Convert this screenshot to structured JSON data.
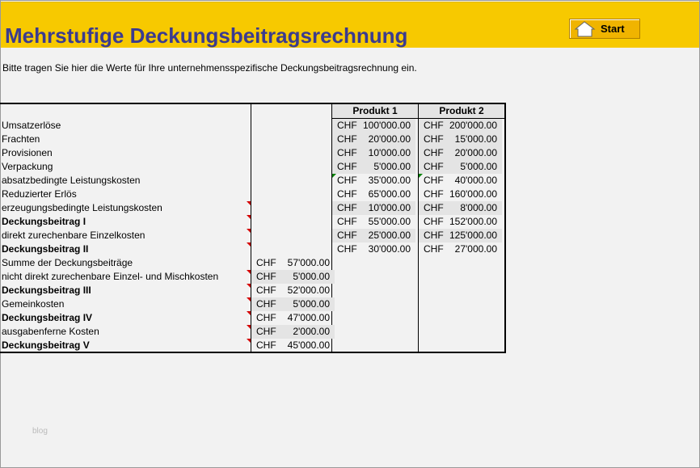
{
  "header": {
    "title": "Mehrstufige Deckungsbeitragsrechnung",
    "start_label": "Start",
    "start_icon": "home-icon",
    "bg": "#f7c900",
    "title_color": "#3b3b8f"
  },
  "intro": "Bitte tragen Sie hier die Werte für Ihre unternehmensspezifische Deckungsbeitragsrechnung ein.",
  "columns": [
    "Produkt 1",
    "Produkt 2"
  ],
  "rows": [
    {
      "label": "Umsatzerlöse",
      "bold": false,
      "p1": "100'000.00",
      "p2": "200'000.00",
      "shade": true
    },
    {
      "label": "Frachten",
      "bold": false,
      "p1": "20'000.00",
      "p2": "15'000.00",
      "shade": true
    },
    {
      "label": "Provisionen",
      "bold": false,
      "p1": "10'000.00",
      "p2": "20'000.00",
      "shade": true
    },
    {
      "label": "Verpackung",
      "bold": false,
      "p1": "5'000.00",
      "p2": "5'000.00",
      "shade": true
    },
    {
      "label": "absatzbedingte Leistungskosten",
      "bold": false,
      "p1": "35'000.00",
      "p2": "40'000.00",
      "shade": false,
      "green": true
    },
    {
      "label": "Reduzierter Erlös",
      "bold": false,
      "p1": "65'000.00",
      "p2": "160'000.00",
      "shade": false
    },
    {
      "label": "erzeugungsbedingte Leistungskosten",
      "bold": false,
      "p1": "10'000.00",
      "p2": "8'000.00",
      "shade": true,
      "note": true
    },
    {
      "label": "Deckungsbeitrag I",
      "bold": true,
      "p1": "55'000.00",
      "p2": "152'000.00",
      "shade": false,
      "note": true
    },
    {
      "label": "direkt zurechenbare Einzelkosten",
      "bold": false,
      "p1": "25'000.00",
      "p2": "125'000.00",
      "shade": true,
      "note": true
    },
    {
      "label": "Deckungsbeitrag II",
      "bold": true,
      "p1": "30'000.00",
      "p2": "27'000.00",
      "shade": false,
      "note": true
    },
    {
      "label": "Summe der Deckungsbeiträge",
      "bold": false,
      "t": "57'000.00",
      "shade": false
    },
    {
      "label": "nicht direkt zurechenbare Einzel- und Mischkosten",
      "bold": false,
      "t": "5'000.00",
      "shade": true,
      "note": true
    },
    {
      "label": "Deckungsbeitrag III",
      "bold": true,
      "t": "52'000.00",
      "shade": false,
      "note": true
    },
    {
      "label": "Gemeinkosten",
      "bold": false,
      "t": "5'000.00",
      "shade": true,
      "note": true
    },
    {
      "label": "Deckungsbeitrag IV",
      "bold": true,
      "t": "47'000.00",
      "shade": false,
      "note": true
    },
    {
      "label": "ausgabenferne Kosten",
      "bold": false,
      "t": "2'000.00",
      "shade": true,
      "note": true
    },
    {
      "label": "Deckungsbeitrag V",
      "bold": true,
      "t": "45'000.00",
      "shade": false,
      "note": true
    }
  ],
  "currency": "CHF",
  "watermark": "blog"
}
